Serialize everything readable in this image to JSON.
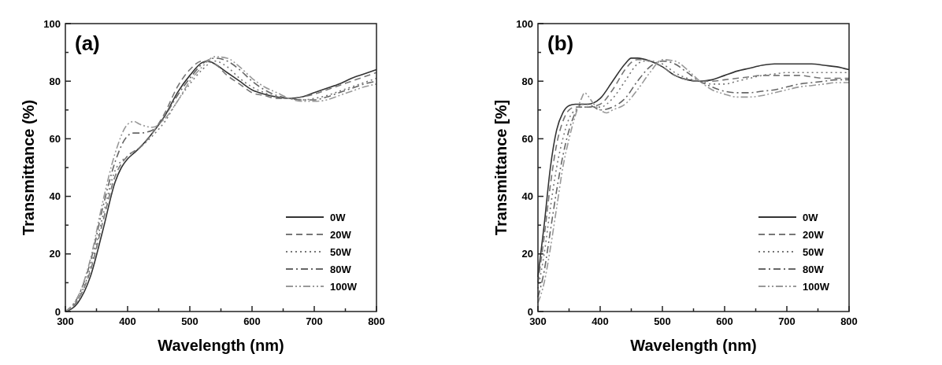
{
  "chart_data": [
    {
      "type": "line",
      "title": "(a)",
      "xlabel": "Wavelength (nm)",
      "ylabel": "Transmittance (%)",
      "xlim": [
        300,
        800
      ],
      "ylim": [
        0,
        100
      ],
      "xticks": [
        300,
        {
          "value": 350,
          "label": null
        },
        400,
        {
          "value": 450,
          "label": null
        },
        500,
        {
          "value": 550,
          "label": null
        },
        600,
        {
          "value": 650,
          "label": null
        },
        700,
        {
          "value": 750,
          "label": null
        },
        800
      ],
      "yticks": [
        0,
        {
          "value": 10,
          "label": null
        },
        20,
        {
          "value": 30,
          "label": null
        },
        40,
        {
          "value": 50,
          "label": null
        },
        60,
        {
          "value": 70,
          "label": null
        },
        80,
        {
          "value": 90,
          "label": null
        },
        100
      ],
      "legend": "bottom right",
      "grid": false,
      "marker": "none",
      "series": [
        {
          "name": "0W",
          "color": "#333333",
          "line_style": "solid",
          "x": [
            300,
            320,
            340,
            360,
            380,
            390,
            400,
            410,
            420,
            440,
            460,
            480,
            500,
            520,
            530,
            540,
            560,
            580,
            600,
            620,
            640,
            660,
            680,
            700,
            720,
            740,
            760,
            780,
            800
          ],
          "values": [
            0,
            3,
            12,
            28,
            45,
            50,
            53,
            55,
            57,
            62,
            68,
            76,
            82,
            86.5,
            87,
            86,
            83,
            80,
            77,
            75.5,
            74.5,
            74,
            74.5,
            76,
            77.5,
            79,
            81,
            82.5,
            84
          ]
        },
        {
          "name": "20W",
          "color": "#777777",
          "line_style": "dashed",
          "x": [
            300,
            320,
            340,
            360,
            380,
            400,
            420,
            440,
            460,
            480,
            500,
            520,
            540,
            560,
            580,
            600,
            620,
            640,
            660,
            680,
            700,
            720,
            740,
            760,
            780,
            800
          ],
          "values": [
            0,
            4,
            14,
            31,
            47,
            54,
            57,
            62,
            69,
            78,
            84,
            87,
            86,
            82,
            79,
            76,
            75,
            74,
            74,
            74.5,
            75.5,
            77,
            78.5,
            80,
            81.5,
            83
          ]
        },
        {
          "name": "50W",
          "color": "#777777",
          "line_style": "dotted",
          "x": [
            300,
            320,
            340,
            360,
            380,
            400,
            420,
            440,
            460,
            480,
            500,
            520,
            540,
            560,
            580,
            600,
            620,
            640,
            660,
            680,
            700,
            720,
            740,
            760,
            780,
            800
          ],
          "values": [
            0,
            4,
            15,
            33,
            49,
            54,
            57,
            61,
            66,
            73,
            79,
            84,
            87,
            85,
            81,
            78,
            76,
            74.5,
            74,
            73.5,
            74,
            75,
            76.5,
            78,
            79.5,
            81
          ]
        },
        {
          "name": "80W",
          "color": "#666666",
          "line_style": "dashdot",
          "x": [
            300,
            320,
            340,
            360,
            380,
            400,
            410,
            420,
            440,
            460,
            480,
            500,
            520,
            540,
            560,
            580,
            600,
            620,
            640,
            660,
            680,
            700,
            720,
            740,
            760,
            780,
            800
          ],
          "values": [
            0,
            5,
            17,
            36,
            52,
            61,
            62,
            62,
            63,
            68,
            75,
            81,
            86,
            88,
            87,
            84,
            80,
            77,
            75,
            74,
            73.5,
            73.5,
            74.5,
            76,
            77.5,
            79,
            80
          ]
        },
        {
          "name": "100W",
          "color": "#999999",
          "line_style": "dashdotdot",
          "x": [
            300,
            320,
            340,
            360,
            380,
            400,
            410,
            420,
            440,
            460,
            480,
            500,
            520,
            540,
            560,
            580,
            600,
            620,
            640,
            660,
            680,
            700,
            720,
            740,
            760,
            780,
            800
          ],
          "values": [
            0,
            5,
            18,
            38,
            55,
            65,
            66,
            65,
            64,
            67,
            73,
            80,
            85,
            88.5,
            88,
            85,
            81,
            78,
            76,
            74,
            73,
            73,
            73.5,
            75,
            76.5,
            78,
            79
          ]
        }
      ]
    },
    {
      "type": "line",
      "title": "(b)",
      "xlabel": "Wavelength (nm)",
      "ylabel": "Transmittance [%]",
      "xlim": [
        300,
        800
      ],
      "ylim": [
        0,
        100
      ],
      "xticks": [
        300,
        {
          "value": 350,
          "label": null
        },
        400,
        {
          "value": 450,
          "label": null
        },
        500,
        {
          "value": 550,
          "label": null
        },
        600,
        {
          "value": 650,
          "label": null
        },
        700,
        {
          "value": 750,
          "label": null
        },
        800
      ],
      "yticks": [
        0,
        {
          "value": 10,
          "label": null
        },
        20,
        {
          "value": 30,
          "label": null
        },
        40,
        {
          "value": 50,
          "label": null
        },
        60,
        {
          "value": 70,
          "label": null
        },
        80,
        {
          "value": 90,
          "label": null
        },
        100
      ],
      "legend": "bottom right",
      "grid": false,
      "marker": "none",
      "series": [
        {
          "name": "0W",
          "color": "#333333",
          "line_style": "solid",
          "x": [
            300,
            310,
            320,
            330,
            340,
            350,
            360,
            380,
            400,
            420,
            440,
            450,
            460,
            480,
            500,
            520,
            540,
            560,
            580,
            600,
            620,
            640,
            660,
            680,
            700,
            720,
            740,
            760,
            780,
            800
          ],
          "values": [
            12,
            30,
            50,
            63,
            69,
            71.5,
            72,
            72,
            74,
            80,
            86,
            88,
            88,
            87,
            85,
            82,
            80.5,
            80,
            80.5,
            82,
            83.5,
            84.5,
            85.5,
            86,
            86,
            86,
            86,
            85.5,
            85,
            84
          ]
        },
        {
          "name": "20W",
          "color": "#777777",
          "line_style": "dashed",
          "x": [
            300,
            310,
            320,
            330,
            340,
            350,
            360,
            380,
            400,
            420,
            440,
            450,
            460,
            480,
            500,
            520,
            540,
            560,
            580,
            600,
            620,
            640,
            660,
            680,
            700,
            720,
            740,
            760,
            780,
            800
          ],
          "values": [
            10,
            26,
            44,
            58,
            66,
            70,
            71,
            71,
            72,
            77,
            84,
            86.5,
            87.5,
            87,
            85,
            82,
            80.5,
            80,
            80,
            80.5,
            81,
            81.5,
            82,
            82,
            82,
            82,
            81.5,
            81,
            81,
            81
          ]
        },
        {
          "name": "50W",
          "color": "#777777",
          "line_style": "dotted",
          "x": [
            300,
            310,
            320,
            330,
            340,
            350,
            360,
            370,
            380,
            400,
            420,
            440,
            460,
            470,
            480,
            500,
            520,
            540,
            560,
            580,
            600,
            620,
            640,
            660,
            680,
            700,
            720,
            740,
            760,
            780,
            800
          ],
          "values": [
            8,
            20,
            36,
            50,
            60,
            67,
            70,
            71,
            71,
            71,
            74,
            80,
            86,
            87,
            87,
            86,
            83,
            81,
            80,
            79,
            79,
            80,
            81,
            82,
            82.5,
            83,
            83,
            83,
            83,
            83,
            83
          ]
        },
        {
          "name": "80W",
          "color": "#666666",
          "line_style": "dashdot",
          "x": [
            300,
            310,
            320,
            330,
            340,
            350,
            360,
            370,
            380,
            390,
            400,
            420,
            440,
            460,
            480,
            500,
            520,
            540,
            560,
            580,
            600,
            620,
            640,
            660,
            680,
            700,
            720,
            740,
            760,
            780,
            800
          ],
          "values": [
            5,
            14,
            28,
            42,
            54,
            63,
            69,
            72,
            72,
            71,
            70,
            71,
            74,
            80,
            85,
            87,
            86,
            83,
            80,
            78,
            76.5,
            76,
            76,
            76.5,
            77,
            78,
            79,
            79.5,
            80,
            80.5,
            80.5
          ]
        },
        {
          "name": "100W",
          "color": "#999999",
          "line_style": "dashdotdot",
          "x": [
            300,
            310,
            320,
            330,
            340,
            350,
            360,
            370,
            375,
            380,
            390,
            400,
            410,
            420,
            440,
            460,
            480,
            500,
            520,
            540,
            560,
            580,
            600,
            620,
            640,
            660,
            680,
            700,
            720,
            740,
            760,
            780,
            800
          ],
          "values": [
            3,
            10,
            22,
            36,
            50,
            60,
            68,
            74,
            76,
            75,
            72,
            70,
            69,
            70,
            72,
            77,
            83,
            87.5,
            87,
            84,
            80,
            77,
            75.5,
            74.5,
            74.5,
            75,
            76,
            77,
            78,
            78.5,
            79,
            79.5,
            79.5
          ]
        }
      ]
    }
  ]
}
